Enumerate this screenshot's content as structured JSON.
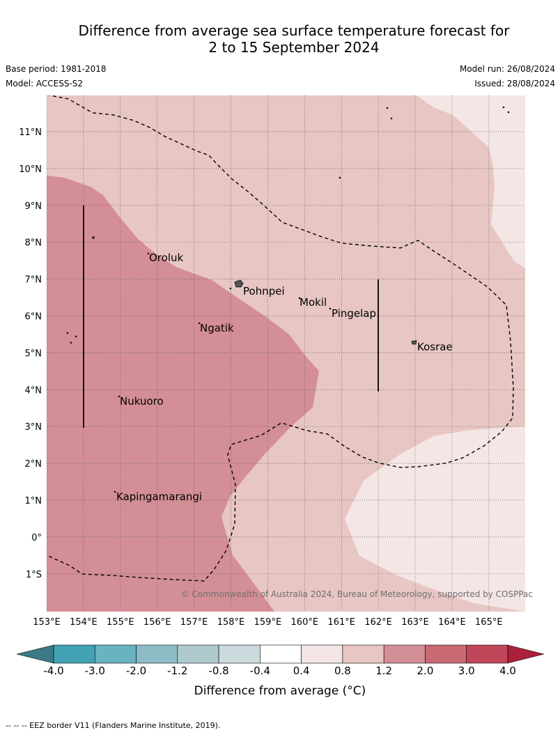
{
  "title": {
    "line1": "Difference from average sea surface temperature forecast for",
    "line2": "2 to 15 September 2024"
  },
  "meta": {
    "base_period": "Base period: 1981-2018",
    "model": "Model: ACCESS-S2",
    "model_run": "Model run: 26/08/2024",
    "issued": "Issued: 28/08/2024"
  },
  "map": {
    "lon_ticks": [
      "153°E",
      "154°E",
      "155°E",
      "156°E",
      "157°E",
      "158°E",
      "159°E",
      "160°E",
      "161°E",
      "162°E",
      "163°E",
      "164°E",
      "165°E"
    ],
    "lat_ticks": [
      "11°N",
      "10°N",
      "9°N",
      "8°N",
      "7°N",
      "6°N",
      "5°N",
      "4°N",
      "3°N",
      "2°N",
      "1°N",
      "0°",
      "1°S"
    ],
    "places": [
      "Oroluk",
      "Pohnpei",
      "Mokil",
      "Pingelap",
      "Ngatik",
      "Kosrae",
      "Nukuoro",
      "Kapingamarangi"
    ],
    "copyright": "© Commonwealth of Australia 2024, Bureau of Meteorology, supported by COSPPac",
    "region_colors": {
      "band_0.4_0.8": "#f4e6e5",
      "band_0.8_1.2": "#e7c6c3",
      "band_1.2_2.0": "#d48e96"
    }
  },
  "colorbar": {
    "tick_labels": [
      "-4.0",
      "-3.0",
      "-2.0",
      "-1.2",
      "-0.8",
      "-0.4",
      "0.4",
      "0.8",
      "1.2",
      "2.0",
      "3.0",
      "4.0"
    ],
    "colors": [
      "#42a2b3",
      "#68b2c1",
      "#8dbcc6",
      "#aecacd",
      "#cbdadd",
      "#ffffff",
      "#f4e6e5",
      "#e7c6c3",
      "#d48e96",
      "#c96973",
      "#bf4659"
    ],
    "under_color": "#3d7a87",
    "over_color": "#a9213b",
    "title": "Difference from average (°C)"
  },
  "footer": "-- -- -- EEZ border V11 (Flanders Marine Institute, 2019)."
}
